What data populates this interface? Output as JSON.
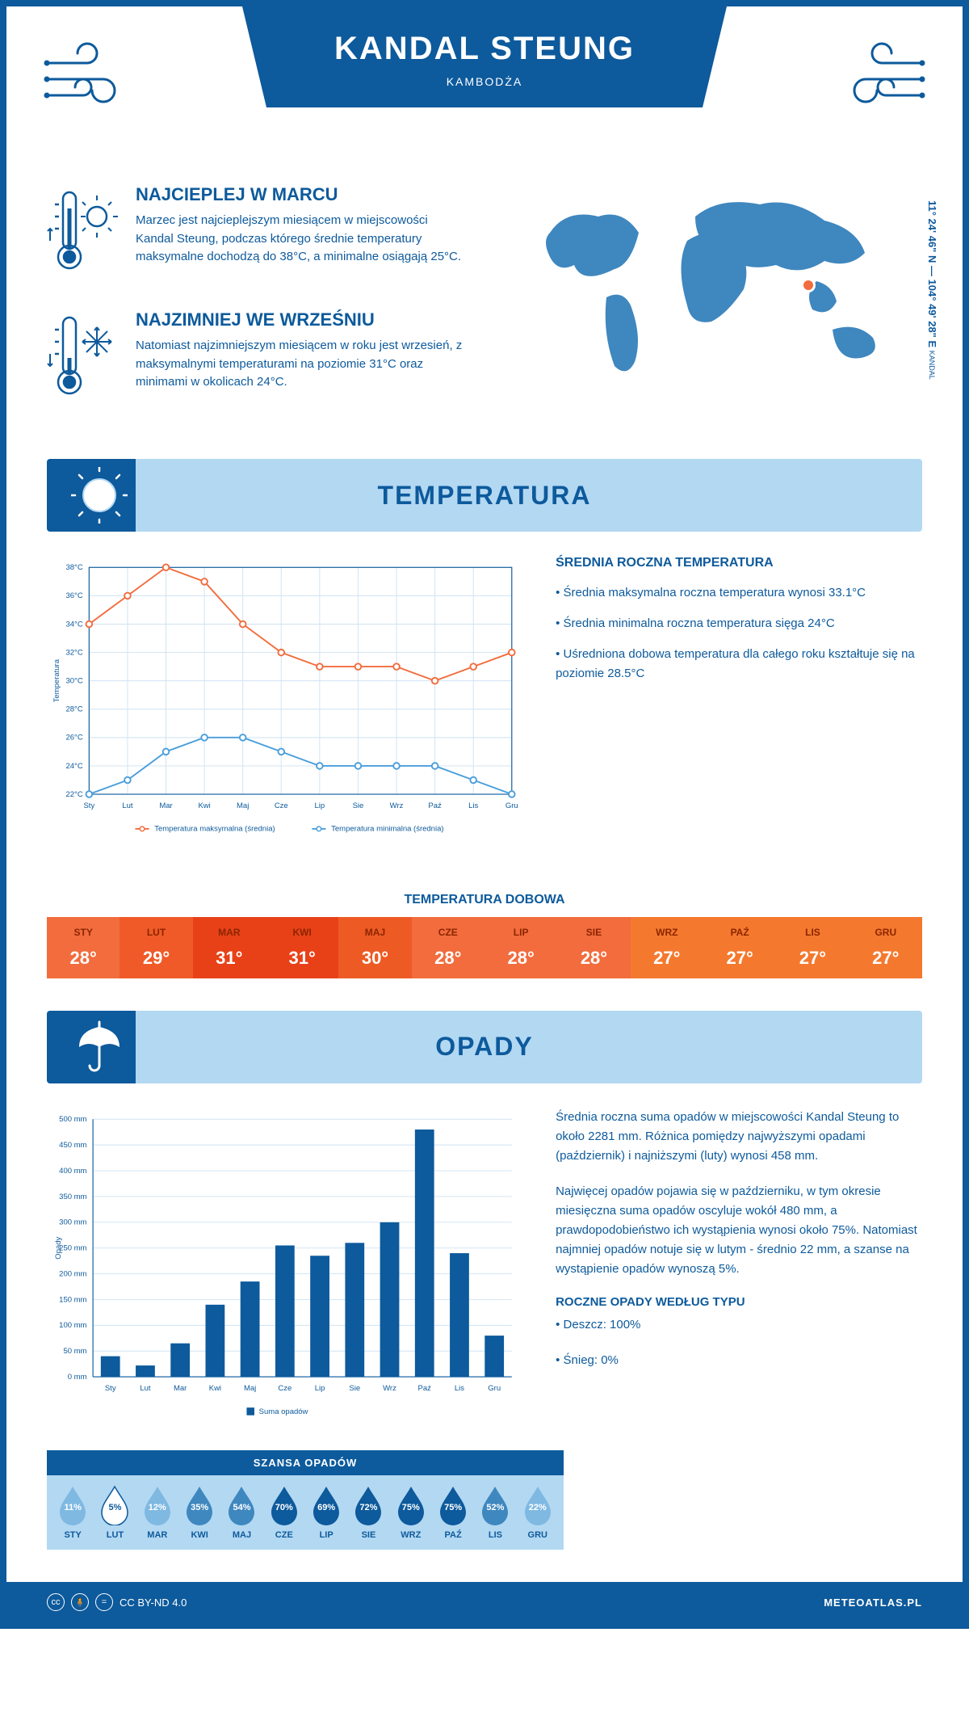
{
  "header": {
    "title": "KANDAL STEUNG",
    "subtitle": "KAMBODŻA"
  },
  "coords": {
    "text": "11° 24' 46\" N — 104° 49' 28\" E",
    "label": "KANDAL"
  },
  "intro": {
    "hot": {
      "heading": "NAJCIEPLEJ W MARCU",
      "body": "Marzec jest najcieplejszym miesiącem w miejscowości Kandal Steung, podczas którego średnie temperatury maksymalne dochodzą do 38°C, a minimalne osiągają 25°C."
    },
    "cold": {
      "heading": "NAJZIMNIEJ WE WRZEŚNIU",
      "body": "Natomiast najzimniejszym miesiącem w roku jest wrzesień, z maksymalnymi temperaturami na poziomie 31°C oraz minimami w okolicach 24°C."
    }
  },
  "temperature": {
    "title": "TEMPERATURA",
    "chart": {
      "months": [
        "Sty",
        "Lut",
        "Mar",
        "Kwi",
        "Maj",
        "Cze",
        "Lip",
        "Sie",
        "Wrz",
        "Paź",
        "Lis",
        "Gru"
      ],
      "ylabel": "Temperatura",
      "ytick_min": 22,
      "ytick_max": 38,
      "ytick_step": 2,
      "max_series": {
        "label": "Temperatura maksymalna (średnia)",
        "color": "#f26c3d",
        "values": [
          34,
          36,
          38,
          37,
          34,
          32,
          31,
          31,
          31,
          30,
          31,
          32
        ]
      },
      "min_series": {
        "label": "Temperatura minimalna (średnia)",
        "color": "#4a9edb",
        "values": [
          22,
          23,
          25,
          26,
          26,
          25,
          24,
          24,
          24,
          24,
          23,
          22
        ]
      },
      "grid_color": "#cfe3f2",
      "axis_color": "#0d5a9c",
      "label_fontsize": 10
    },
    "info_title": "ŚREDNIA ROCZNA TEMPERATURA",
    "info_bullets": [
      "• Średnia maksymalna roczna temperatura wynosi 33.1°C",
      "• Średnia minimalna roczna temperatura sięga 24°C",
      "• Uśredniona dobowa temperatura dla całego roku kształtuje się na poziomie 28.5°C"
    ],
    "daily_title": "TEMPERATURA DOBOWA",
    "daily": {
      "months": [
        "STY",
        "LUT",
        "MAR",
        "KWI",
        "MAJ",
        "CZE",
        "LIP",
        "SIE",
        "WRZ",
        "PAŹ",
        "LIS",
        "GRU"
      ],
      "values": [
        "28°",
        "29°",
        "31°",
        "31°",
        "30°",
        "28°",
        "28°",
        "28°",
        "27°",
        "27°",
        "27°",
        "27°"
      ],
      "colors": [
        "#f26c3d",
        "#f05a28",
        "#e84118",
        "#e84118",
        "#ee5a24",
        "#f26c3d",
        "#f26c3d",
        "#f26c3d",
        "#f4792f",
        "#f4792f",
        "#f4792f",
        "#f4792f"
      ],
      "text_color_month": "#8b2500"
    }
  },
  "precipitation": {
    "title": "OPADY",
    "chart": {
      "months": [
        "Sty",
        "Lut",
        "Mar",
        "Kwi",
        "Maj",
        "Cze",
        "Lip",
        "Sie",
        "Wrz",
        "Paź",
        "Lis",
        "Gru"
      ],
      "ylabel": "Opady",
      "ytick_min": 0,
      "ytick_max": 500,
      "ytick_step": 50,
      "values": [
        40,
        22,
        65,
        140,
        185,
        255,
        235,
        260,
        300,
        480,
        240,
        80
      ],
      "bar_color": "#0d5a9c",
      "grid_color": "#cfe3f2",
      "axis_color": "#0d5a9c",
      "series_label": "Suma opadów",
      "bar_width": 0.55
    },
    "text1": "Średnia roczna suma opadów w miejscowości Kandal Steung to około 2281 mm. Różnica pomiędzy najwyższymi opadami (październik) i najniższymi (luty) wynosi 458 mm.",
    "text2": "Najwięcej opadów pojawia się w październiku, w tym okresie miesięczna suma opadów oscyluje wokół 480 mm, a prawdopodobieństwo ich wystąpienia wynosi około 75%. Natomiast najmniej opadów notuje się w lutym - średnio 22 mm, a szanse na wystąpienie opadów wynoszą 5%.",
    "type_title": "ROCZNE OPADY WEDŁUG TYPU",
    "type_bullets": [
      "• Deszcz: 100%",
      "• Śnieg: 0%"
    ],
    "chance": {
      "title": "SZANSA OPADÓW",
      "months": [
        "STY",
        "LUT",
        "MAR",
        "KWI",
        "MAJ",
        "CZE",
        "LIP",
        "SIE",
        "WRZ",
        "PAŹ",
        "LIS",
        "GRU"
      ],
      "values": [
        "11%",
        "5%",
        "12%",
        "35%",
        "54%",
        "70%",
        "69%",
        "72%",
        "75%",
        "75%",
        "52%",
        "22%"
      ],
      "drop_color_dark": "#0d5a9c",
      "drop_color_mid": "#3f87bf",
      "drop_color_light": "#7fb9e2",
      "drop_color_white": "#ffffff"
    }
  },
  "footer": {
    "license": "CC BY-ND 4.0",
    "site": "METEOATLAS.PL"
  },
  "colors": {
    "primary": "#0d5a9c",
    "light_blue": "#b3d8f2",
    "map_fill": "#3f87bf",
    "marker": "#f26c3d"
  }
}
